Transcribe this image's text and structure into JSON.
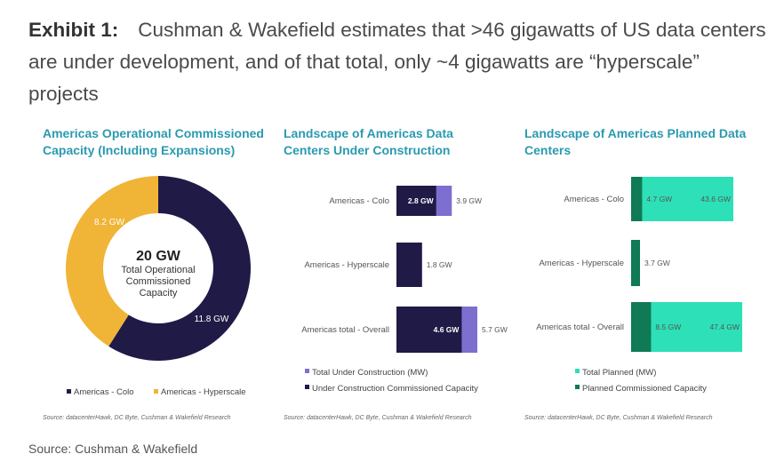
{
  "headline": {
    "label": "Exhibit 1:",
    "text": "Cushman & Wakefield estimates that >46 gigawatts of US data centers are under development, and of that total, only ~4 gigawatts are “hyperscale” projects"
  },
  "footer": {
    "source": "Source: Cushman & Wakefield"
  },
  "colors": {
    "accent_title": "#2a9ab0",
    "navy": "#201a47",
    "gold": "#f0b437",
    "purple": "#7d6fcf",
    "teal": "#2de0b8",
    "dark_green": "#0f7a55"
  },
  "chart_data": [
    {
      "type": "pie",
      "title": "Americas Operational Commissioned Capacity (Including Expansions)",
      "center_value": "20 GW",
      "center_caption": [
        "Total Operational",
        "Commissioned",
        "Capacity"
      ],
      "slices": [
        {
          "name": "Americas - Colo",
          "value": 11.8,
          "label": "11.8 GW"
        },
        {
          "name": "Americas - Hyperscale",
          "value": 8.2,
          "label": "8.2 GW"
        }
      ],
      "legend": [
        "Americas - Colo",
        "Americas - Hyperscale"
      ],
      "source": "Source: datacenterHawk, DC Byte, Cushman & Wakefield Research"
    },
    {
      "type": "bar",
      "orientation": "horizontal",
      "title": "Landscape of Americas Data Centers Under Construction",
      "categories": [
        "Americas - Colo",
        "Americas - Hyperscale",
        "Americas total - Overall"
      ],
      "series": [
        {
          "name": "Under Construction Commissioned Capacity",
          "values": [
            2.8,
            1.8,
            4.6
          ],
          "labels": [
            "2.8 GW",
            "",
            "4.6 GW"
          ]
        },
        {
          "name": "Total Under Construction (MW)",
          "values": [
            3.9,
            1.8,
            5.7
          ],
          "labels": [
            "3.9 GW",
            "1.8 GW",
            "5.7 GW"
          ]
        }
      ],
      "legend": [
        "Total Under Construction (MW)",
        "Under Construction Commissioned Capacity"
      ],
      "source": "Source: datacenterHawk, DC Byte, Cushman & Wakefield Research"
    },
    {
      "type": "bar",
      "orientation": "horizontal",
      "title": "Landscape of Americas Planned Data Centers",
      "categories": [
        "Americas - Colo",
        "Americas - Hyperscale",
        "Americas total - Overall"
      ],
      "series": [
        {
          "name": "Planned Commissioned Capacity",
          "values": [
            4.7,
            3.7,
            8.5
          ],
          "labels": [
            "4.7 GW",
            "3.7 GW",
            "8.5 GW"
          ]
        },
        {
          "name": "Total Planned (MW)",
          "values": [
            43.6,
            3.7,
            47.4
          ],
          "labels": [
            "43.6 GW",
            "",
            "47.4 GW"
          ]
        }
      ],
      "legend": [
        "Total Planned (MW)",
        "Planned Commissioned Capacity"
      ],
      "source": "Source: datacenterHawk, DC Byte, Cushman & Wakefield Research"
    }
  ]
}
